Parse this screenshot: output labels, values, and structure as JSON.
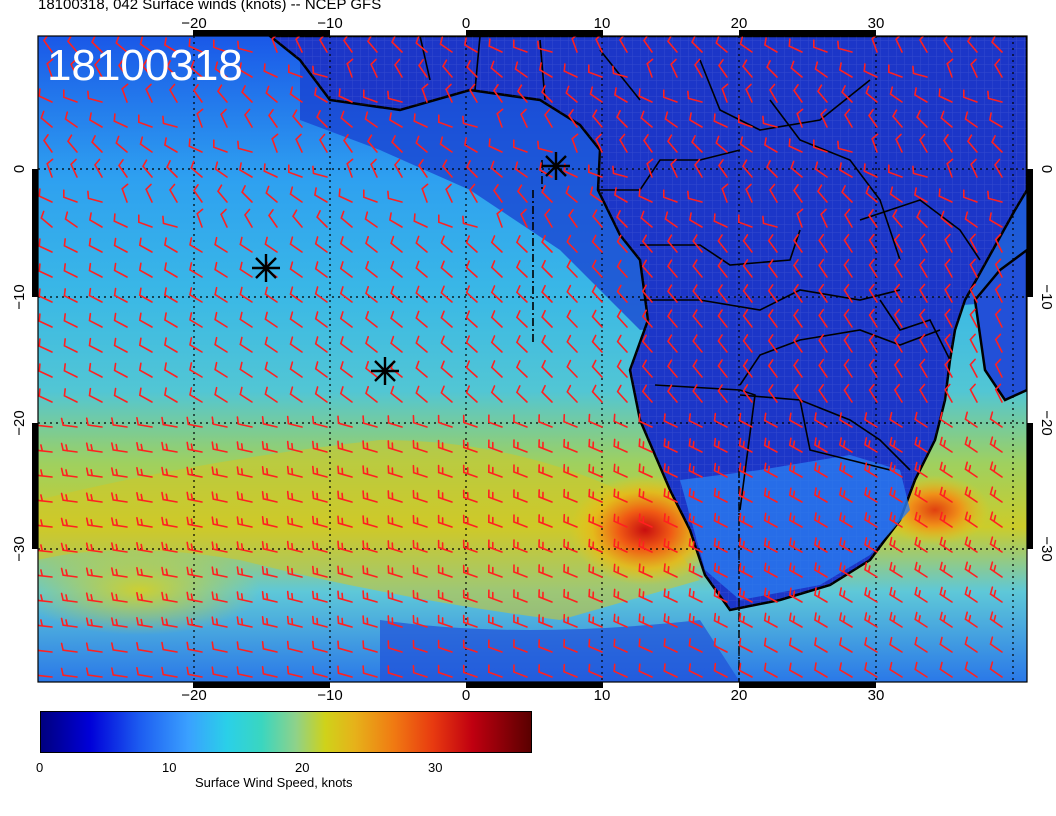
{
  "header": {
    "title": "18100318, 042 Surface winds (knots) -- NCEP GFS"
  },
  "map": {
    "stamp": "18100318",
    "lon_ticks": [
      "−20",
      "−10",
      "0",
      "10",
      "20",
      "30"
    ],
    "lat_ticks": [
      "0",
      "−10",
      "−20",
      "−30"
    ],
    "wind_barb_color": "#ff2020",
    "marker_icon": "asterisk-marker-icon",
    "colors": {
      "ocean_calm": "#1030c8",
      "trade_winds": "#36b8e0",
      "strong_winds": "#d8c010",
      "jet_core": "#e03010",
      "coastline": "#000000"
    }
  },
  "colorbar": {
    "ticks": [
      "0",
      "10",
      "20",
      "30"
    ],
    "label": "Surface Wind Speed, knots",
    "range": [
      0,
      37
    ]
  }
}
